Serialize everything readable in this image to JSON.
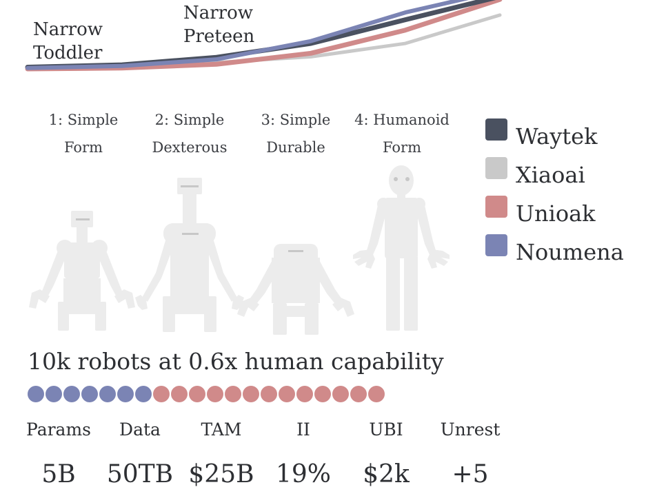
{
  "chart_data": {
    "type": "line",
    "title": "",
    "xlabel": "",
    "ylabel": "",
    "series": [
      {
        "name": "Xiaoai",
        "color": "#c9c9c9",
        "points": [
          [
            0,
            0.6
          ],
          [
            1,
            1.1
          ],
          [
            2,
            2.2
          ],
          [
            3,
            4.2
          ],
          [
            4,
            8.8
          ],
          [
            5,
            18.6
          ]
        ]
      },
      {
        "name": "Unioak",
        "color": "#d08a8a",
        "points": [
          [
            0,
            0.0
          ],
          [
            1,
            0.3
          ],
          [
            2,
            1.6
          ],
          [
            3,
            5.4
          ],
          [
            4,
            13.4
          ],
          [
            5,
            24.0
          ]
        ]
      },
      {
        "name": "Waytek",
        "color": "#4a5160",
        "points": [
          [
            0,
            0.6
          ],
          [
            1,
            1.4
          ],
          [
            2,
            4.0
          ],
          [
            3,
            8.8
          ],
          [
            4,
            17.0
          ],
          [
            5,
            25.0
          ]
        ]
      },
      {
        "name": "Noumena",
        "color": "#7b84b4",
        "points": [
          [
            0,
            0.3
          ],
          [
            1,
            1.0
          ],
          [
            2,
            3.3
          ],
          [
            3,
            9.6
          ],
          [
            4,
            19.5
          ],
          [
            5,
            27.0
          ]
        ]
      }
    ],
    "annotations": [
      {
        "text": "Narrow Toddler",
        "lines": [
          "Narrow",
          "Toddler"
        ]
      },
      {
        "text": "Narrow Preteen",
        "lines": [
          "Narrow",
          "Preteen"
        ]
      }
    ]
  },
  "robot_stages": [
    {
      "line1": "1: Simple",
      "line2": "Form"
    },
    {
      "line1": "2: Simple",
      "line2": "Dexterous"
    },
    {
      "line1": "3: Simple",
      "line2": "Durable"
    },
    {
      "line1": "4: Humanoid",
      "line2": "Form"
    }
  ],
  "legend": [
    {
      "label": "Waytek",
      "color": "#4a5160"
    },
    {
      "label": "Xiaoai",
      "color": "#c9c9c9"
    },
    {
      "label": "Unioak",
      "color": "#d08a8a"
    },
    {
      "label": "Noumena",
      "color": "#7b84b4"
    }
  ],
  "capability": {
    "text": "10k robots at 0.6x human capability",
    "total_dots": 20,
    "noumena_dots": 7,
    "unioak_dots": 13,
    "colors": {
      "noumena": "#7b84b4",
      "unioak": "#d08a8a"
    }
  },
  "stats": [
    {
      "label": "Params",
      "value": "5B"
    },
    {
      "label": "Data",
      "value": "50TB"
    },
    {
      "label": "TAM",
      "value": "$25B"
    },
    {
      "label": "II",
      "value": "19%"
    },
    {
      "label": "UBI",
      "value": "$2k"
    },
    {
      "label": "Unrest",
      "value": "+5"
    }
  ],
  "robot_color": "#ececec",
  "robot_detail_color": "#c7c7c7"
}
